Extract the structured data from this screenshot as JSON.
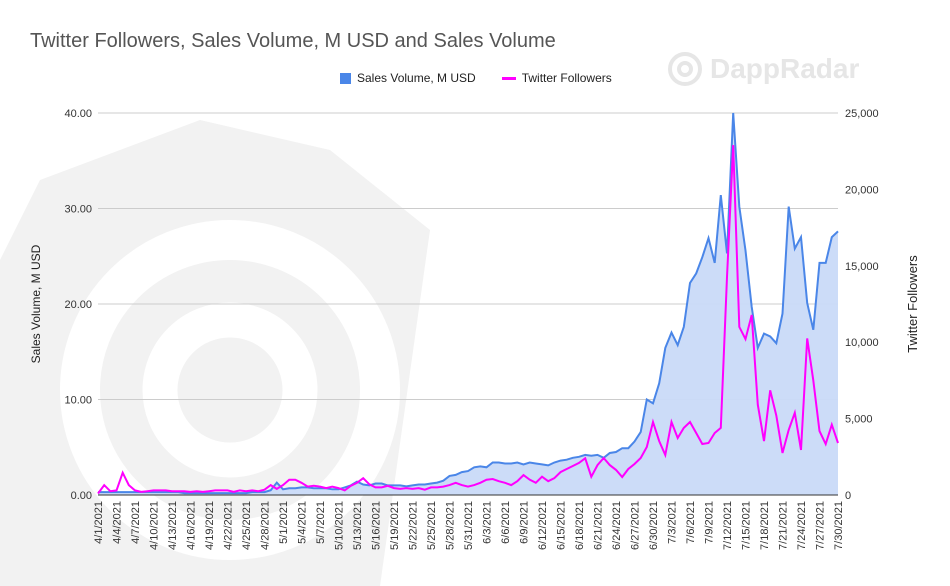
{
  "watermark": "DappRadar",
  "colors": {
    "sales": "#4a86e8",
    "sales_fill": "#c9daf8",
    "followers": "#ff00ff",
    "grid": "#cccccc"
  },
  "chart_data": {
    "type": "area+line",
    "title": "Twitter Followers, Sales Volume, M USD and Sales Volume",
    "legend": [
      "Sales Volume, M USD",
      "Twitter Followers"
    ],
    "legend_position": "top",
    "ylabel_left": "Sales Volume, M USD",
    "ylabel_right": "Twitter Followers",
    "ylim_left": [
      0,
      40
    ],
    "ylim_right": [
      0,
      25000
    ],
    "yticks_left": [
      "0.00",
      "10.00",
      "20.00",
      "30.00",
      "40.00"
    ],
    "yticks_right": [
      "0",
      "5,000",
      "10,000",
      "15,000",
      "20,000",
      "25,000"
    ],
    "grid": true,
    "x_start": "4/1/2021",
    "x_end": "7/30/2021",
    "x_tick_every_days": 3,
    "xticks": [
      "4/1/2021",
      "4/4/2021",
      "4/7/2021",
      "4/10/2021",
      "4/13/2021",
      "4/16/2021",
      "4/19/2021",
      "4/22/2021",
      "4/25/2021",
      "4/28/2021",
      "5/1/2021",
      "5/4/2021",
      "5/7/2021",
      "5/10/2021",
      "5/13/2021",
      "5/16/2021",
      "5/19/2021",
      "5/22/2021",
      "5/25/2021",
      "5/28/2021",
      "5/31/2021",
      "6/3/2021",
      "6/6/2021",
      "6/9/2021",
      "6/12/2021",
      "6/15/2021",
      "6/18/2021",
      "6/21/2021",
      "6/24/2021",
      "6/27/2021",
      "6/30/2021",
      "7/3/2021",
      "7/6/2021",
      "7/9/2021",
      "7/12/2021",
      "7/15/2021",
      "7/18/2021",
      "7/21/2021",
      "7/24/2021",
      "7/27/2021",
      "7/30/2021"
    ],
    "series": [
      {
        "name": "Sales Volume, M USD",
        "axis": "left",
        "type": "area",
        "values": [
          0.3,
          0.3,
          0.3,
          0.3,
          0.3,
          0.3,
          0.3,
          0.3,
          0.3,
          0.3,
          0.3,
          0.3,
          0.3,
          0.3,
          0.2,
          0.2,
          0.2,
          0.2,
          0.2,
          0.2,
          0.2,
          0.2,
          0.2,
          0.2,
          0.2,
          0.3,
          0.3,
          0.3,
          0.5,
          1.3,
          0.6,
          0.7,
          0.7,
          0.8,
          0.8,
          0.7,
          0.7,
          0.7,
          0.6,
          0.6,
          0.8,
          1.0,
          1.4,
          1.1,
          1.0,
          1.2,
          1.2,
          1.0,
          1.0,
          1.0,
          0.9,
          1.0,
          1.1,
          1.1,
          1.2,
          1.3,
          1.5,
          2.0,
          2.1,
          2.4,
          2.5,
          2.9,
          3.0,
          2.9,
          3.4,
          3.4,
          3.3,
          3.3,
          3.4,
          3.2,
          3.4,
          3.3,
          3.2,
          3.1,
          3.4,
          3.6,
          3.7,
          3.9,
          4.0,
          4.2,
          4.1,
          4.2,
          3.9,
          4.4,
          4.5,
          4.9,
          4.9,
          5.6,
          6.6,
          10,
          9.6,
          11.7,
          15.4,
          17,
          15.7,
          17.6,
          22.2,
          23.2,
          24.9,
          26.9,
          24.3,
          31.4,
          25.3,
          40,
          30.2,
          25.6,
          19.7,
          15.4,
          16.9,
          16.6,
          15.9,
          19,
          30.2,
          25.8,
          27,
          20.1,
          17.3,
          24.3,
          24.3,
          27,
          27.6
        ]
      },
      {
        "name": "Twitter Followers",
        "axis": "right",
        "type": "line",
        "values": [
          100,
          650,
          250,
          300,
          1460,
          650,
          300,
          200,
          250,
          300,
          300,
          300,
          250,
          250,
          250,
          200,
          250,
          200,
          250,
          300,
          300,
          300,
          200,
          300,
          250,
          300,
          250,
          350,
          650,
          400,
          650,
          1000,
          1000,
          800,
          550,
          600,
          550,
          450,
          550,
          450,
          300,
          600,
          800,
          1100,
          700,
          500,
          500,
          600,
          450,
          400,
          450,
          400,
          450,
          350,
          500,
          500,
          550,
          650,
          800,
          650,
          550,
          650,
          800,
          1000,
          1050,
          900,
          800,
          650,
          900,
          1300,
          1000,
          800,
          1200,
          900,
          1100,
          1500,
          1700,
          1900,
          2100,
          2400,
          1200,
          1960,
          2420,
          1960,
          1640,
          1180,
          1700,
          2030,
          2420,
          3140,
          4780,
          3530,
          2620,
          4780,
          3730,
          4390,
          4780,
          4060,
          3340,
          3400,
          4060,
          4390,
          14270,
          22900,
          11000,
          10200,
          11780,
          5910,
          3530,
          6850,
          5200,
          2750,
          4260,
          5380,
          2950,
          10250,
          7500,
          4180,
          3340,
          4600,
          3400
        ]
      }
    ]
  }
}
